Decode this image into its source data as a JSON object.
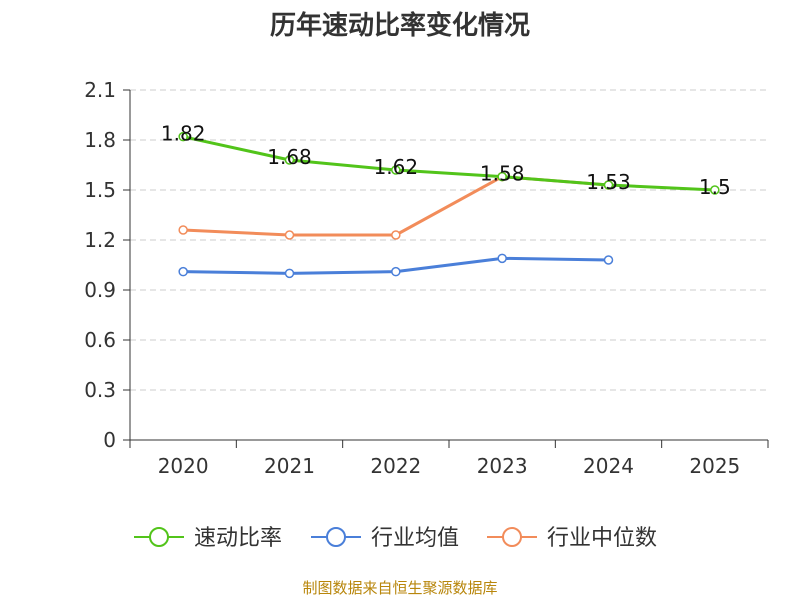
{
  "chart_data": {
    "type": "line",
    "title": "历年速动比率变化情况",
    "categories": [
      "2020",
      "2021",
      "2022",
      "2023",
      "2024",
      "2025"
    ],
    "ylim": [
      0,
      2.1
    ],
    "yticks": [
      "0",
      "0.3",
      "0.6",
      "0.9",
      "1.2",
      "1.5",
      "1.8",
      "2.1"
    ],
    "series": [
      {
        "name": "速动比率",
        "color": "#52c41a",
        "values": [
          1.82,
          1.68,
          1.62,
          1.58,
          1.53,
          1.5
        ],
        "labels": [
          "1.82",
          "1.68",
          "1.62",
          "1.58",
          "1.53",
          "1.5"
        ]
      },
      {
        "name": "行业均值",
        "color": "#4a7fd9",
        "values": [
          1.01,
          1.0,
          1.01,
          1.09,
          1.08,
          null
        ]
      },
      {
        "name": "行业中位数",
        "color": "#f28c5a",
        "values": [
          1.26,
          1.23,
          1.23,
          1.58,
          1.53,
          null
        ]
      }
    ],
    "source": "制图数据来自恒生聚源数据库"
  }
}
